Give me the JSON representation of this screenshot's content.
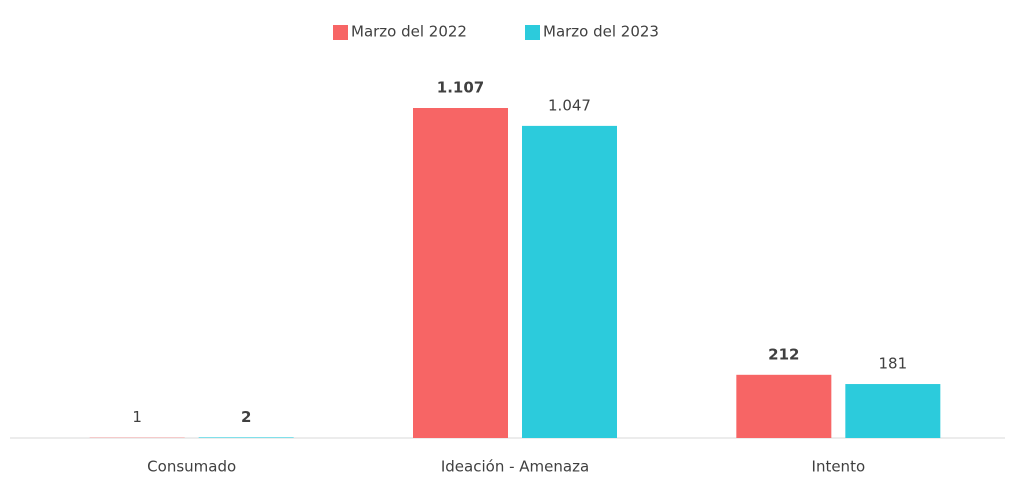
{
  "chart_data": {
    "type": "bar",
    "categories": [
      "Consumado",
      "Ideación - Amenaza",
      "Intento"
    ],
    "series": [
      {
        "name": "Marzo del 2022",
        "color": "#f76565",
        "values": [
          1,
          1107,
          212
        ],
        "value_labels": [
          "1",
          "1.107",
          "212"
        ]
      },
      {
        "name": "Marzo del 2023",
        "color": "#2ccbdc",
        "values": [
          2,
          1047,
          181
        ],
        "value_labels": [
          "2",
          "1.047",
          "181"
        ]
      }
    ],
    "legend": "top"
  }
}
